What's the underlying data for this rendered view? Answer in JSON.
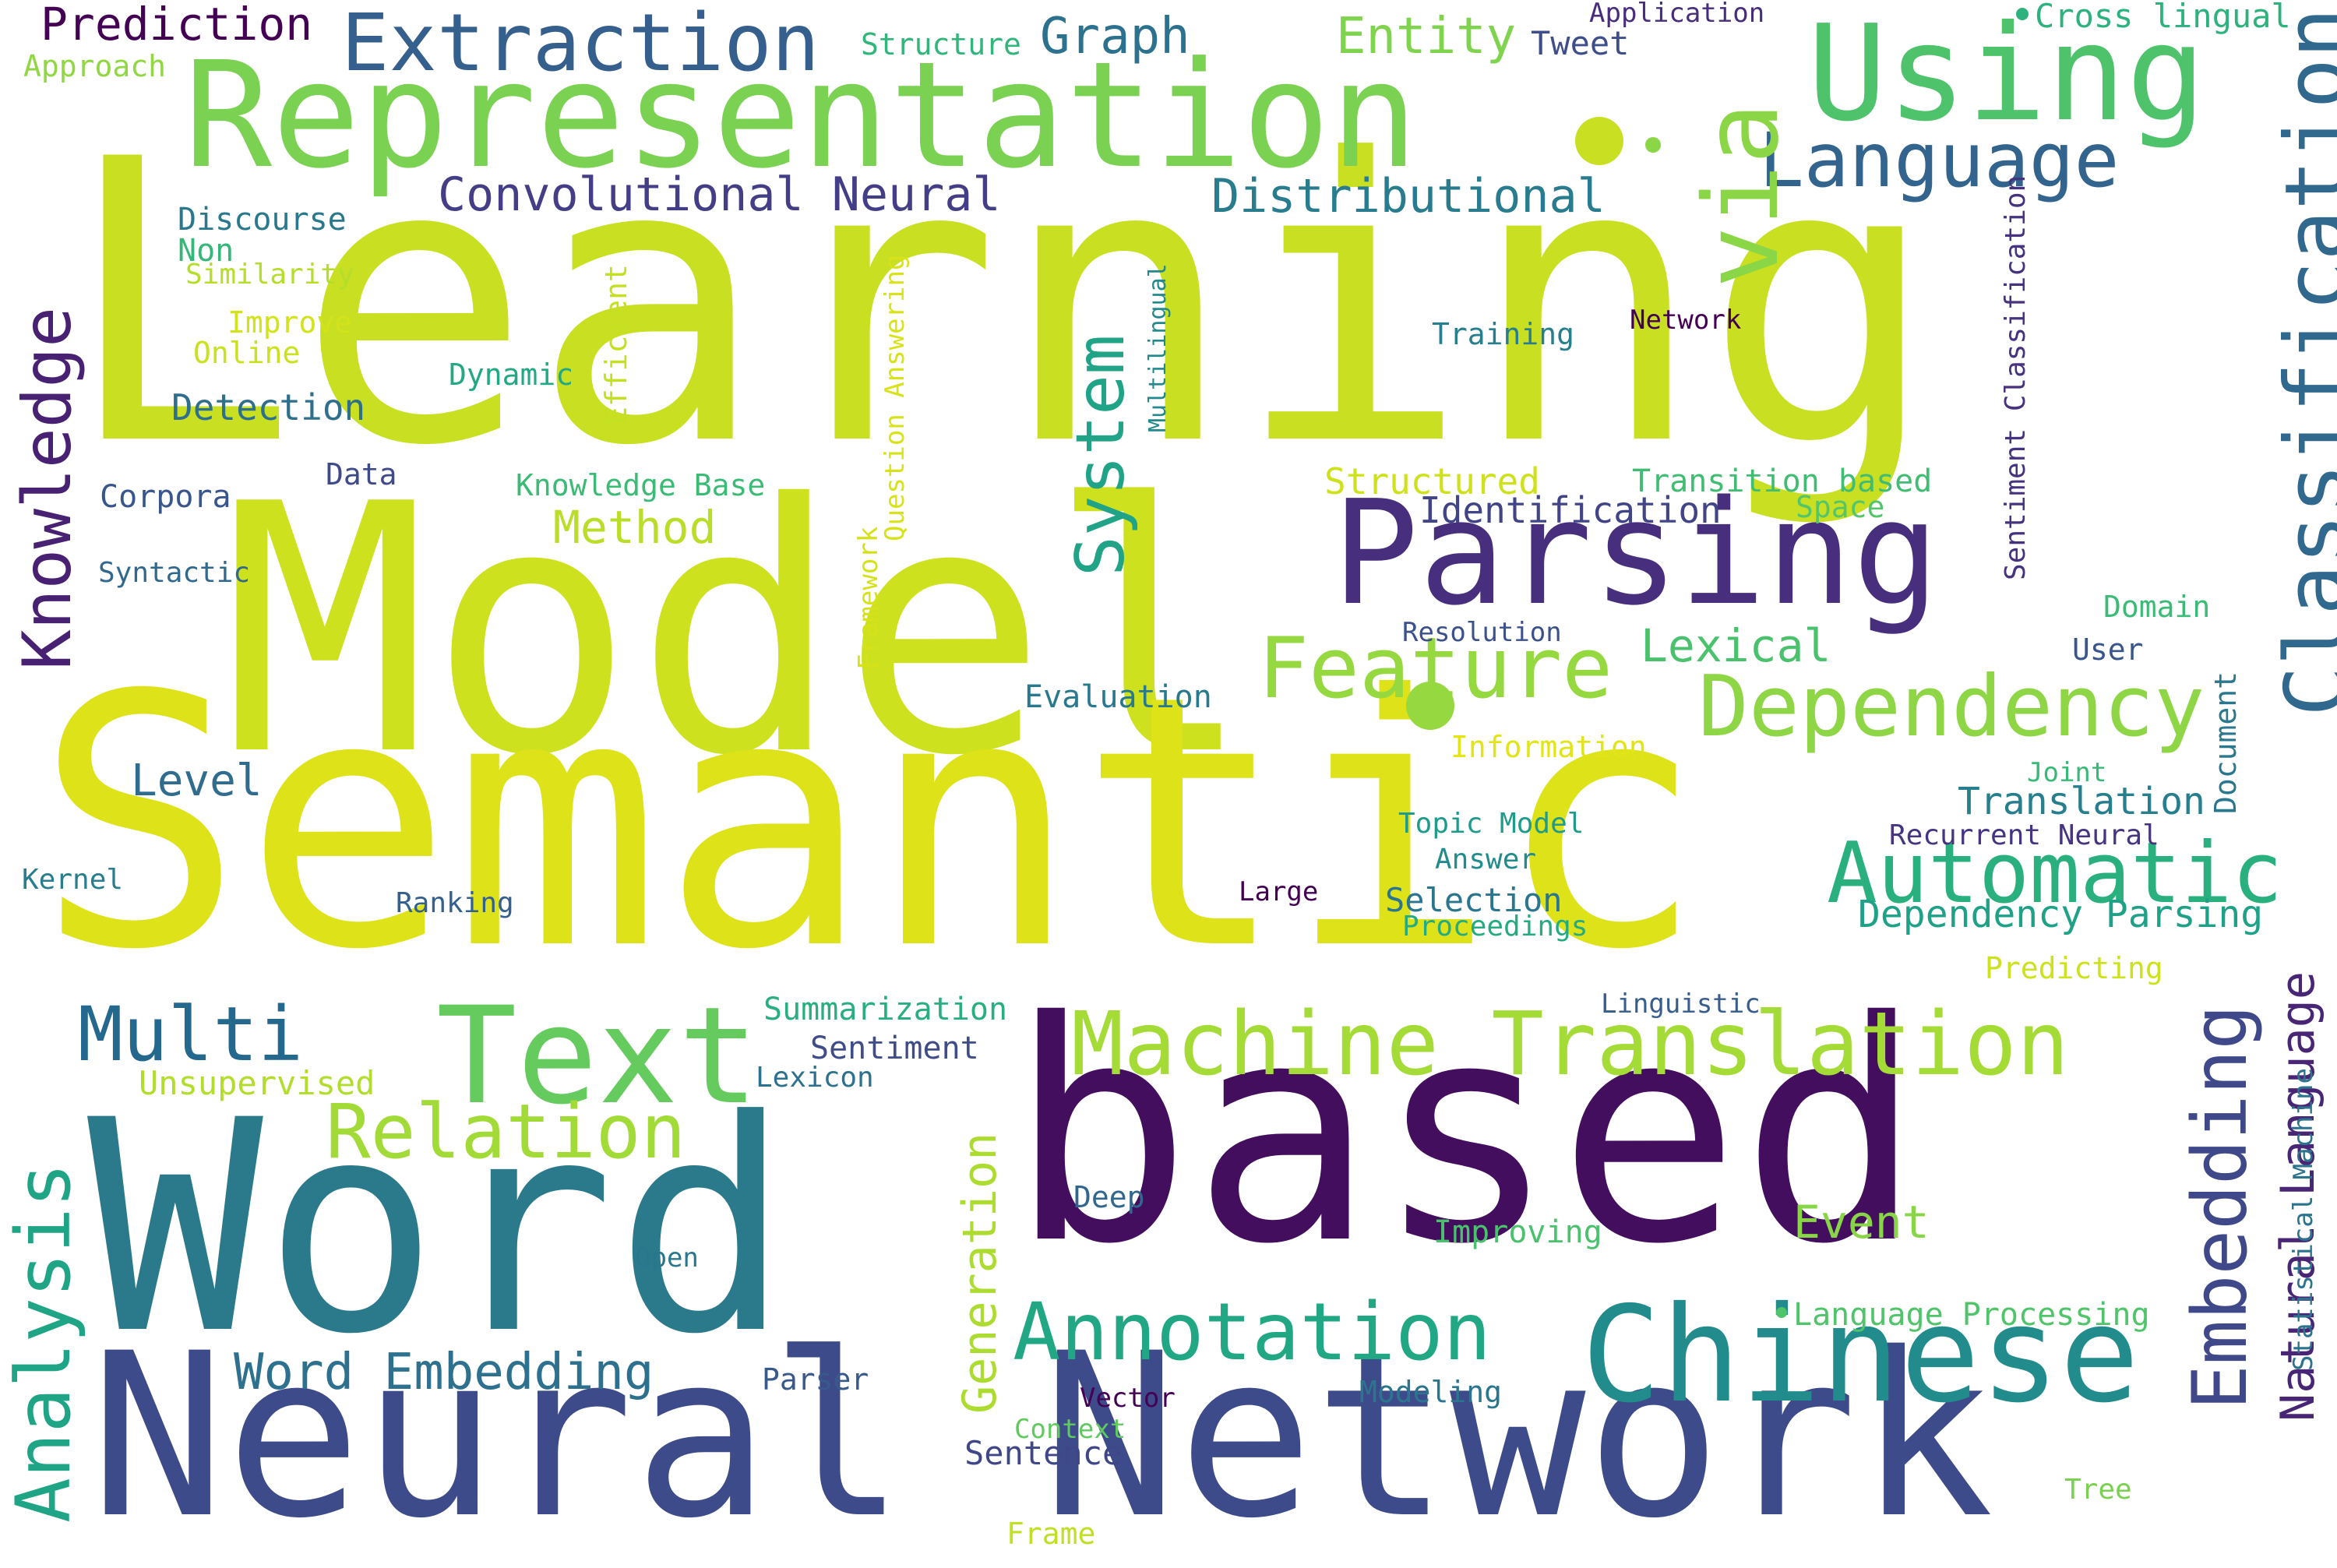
{
  "words": [
    "Learning",
    "Model",
    "Semantic",
    "based",
    "Word",
    "Neural Network",
    "Representation",
    "Using",
    "Parsing",
    "via",
    "Classification",
    "Chinese",
    "Text",
    "Machine Translation",
    "Automatic",
    "Dependency",
    "Feature",
    "Annotation",
    "Multi",
    "Relation",
    "Word Embedding",
    "Analysis",
    "Knowledge",
    "System",
    "Embedding",
    "Extraction",
    "Language",
    "Prediction",
    "Graph",
    "Entity",
    "Convolutional Neural",
    "Distributional",
    "Lexical",
    "Method",
    "Natural Language",
    "Generation",
    "Event",
    "Dependency Parsing",
    "Translation",
    "Level",
    "Detection",
    "Identification",
    "Structured",
    "Transition based",
    "Cross lingual",
    "Tweet",
    "Application",
    "Structure",
    "Approach",
    "Discourse",
    "Non",
    "Similarity",
    "Improve",
    "Online",
    "Dynamic",
    "Data",
    "Corpora",
    "Syntactic",
    "Knowledge Base",
    "Efficient",
    "Question Answering",
    "Framework",
    "Training",
    "Network",
    "Multilingual",
    "Sentiment Classification",
    "Space",
    "Resolution",
    "Evaluation",
    "Domain",
    "User",
    "Document",
    "Information",
    "Joint",
    "Recurrent Neural",
    "Topic Model",
    "Answer",
    "Selection",
    "Proceedings",
    "Kernel",
    "Ranking",
    "Large",
    "Predicting",
    "Linguistic",
    "Summarization",
    "Sentiment",
    "Lexicon",
    "Unsupervised",
    "Statistical Machine",
    "Deep",
    "Improving",
    "Open",
    "Language Processing",
    "Parser",
    "Vector",
    "Modeling",
    "Context",
    "Sentence",
    "Tree",
    "Frame"
  ]
}
